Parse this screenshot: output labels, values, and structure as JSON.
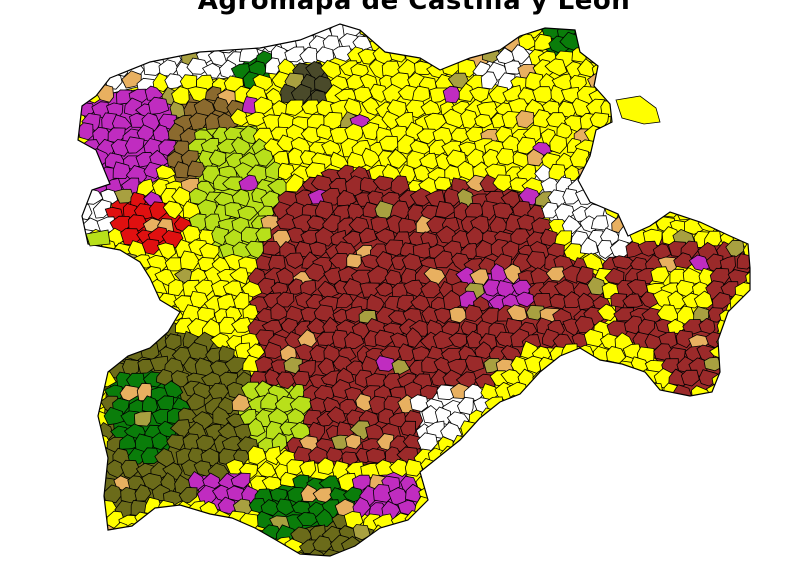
{
  "title": "Agromapa de Castilla y León",
  "colors": {
    "background": "#ffffff",
    "outline": "#000000",
    "unclassified": "#ffffff",
    "yellow": "#ffff00",
    "brown_red": "#9b2a2a",
    "magenta": "#c02cc0",
    "olive": "#6b6b1a",
    "green": "#0a7d0a",
    "lime": "#b8e01a",
    "red": "#e01010",
    "tan": "#8b6a2e",
    "khaki": "#a8a040",
    "dark_olive": "#4a4a2a",
    "light_orange": "#e8b060",
    "pink": "#f0a8c8"
  }
}
